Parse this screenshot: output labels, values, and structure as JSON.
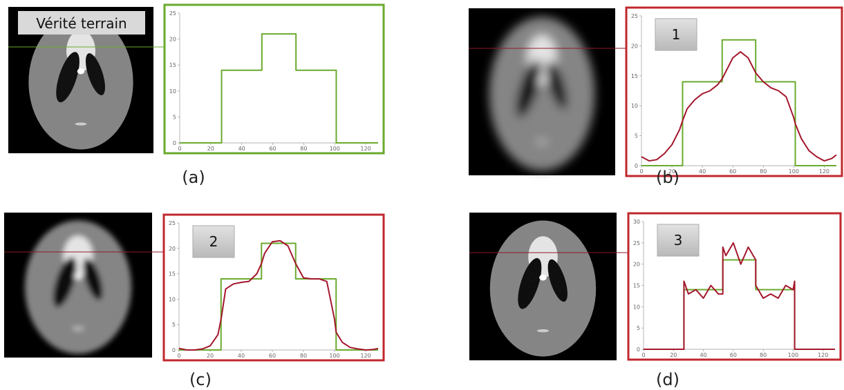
{
  "chart_data": [
    {
      "type": "line",
      "annotation": "Vérité terrain",
      "caption": "(a)",
      "x": [
        0,
        5,
        10,
        15,
        20,
        25,
        27,
        27,
        30,
        35,
        40,
        45,
        50,
        53,
        53,
        55,
        60,
        65,
        70,
        75,
        75,
        80,
        85,
        90,
        95,
        100,
        101,
        101,
        105,
        110,
        115,
        120,
        125,
        128
      ],
      "series": [
        {
          "color": "#6aaa2e",
          "values": [
            0,
            0,
            0,
            0,
            0,
            0,
            0,
            14,
            14,
            14,
            14,
            14,
            14,
            14,
            21,
            21,
            21,
            21,
            21,
            21,
            14,
            14,
            14,
            14,
            14,
            14,
            14,
            0,
            0,
            0,
            0,
            0,
            0,
            0
          ]
        }
      ],
      "xlim": [
        0,
        128
      ],
      "xticks": [
        0,
        20,
        40,
        60,
        80,
        100,
        120
      ],
      "ylim": [
        0,
        25
      ],
      "yticks": [
        0,
        5,
        10,
        15,
        20,
        25
      ],
      "frame_color": "#6aaa2e"
    },
    {
      "type": "line",
      "annotation": "1",
      "caption": "(b)",
      "x": [
        0,
        5,
        10,
        15,
        20,
        25,
        27,
        27,
        30,
        35,
        40,
        45,
        50,
        53,
        53,
        55,
        60,
        65,
        70,
        75,
        75,
        80,
        85,
        90,
        95,
        100,
        101,
        101,
        105,
        110,
        115,
        120,
        125,
        128
      ],
      "series": [
        {
          "color": "#6aaa2e",
          "values": [
            0,
            0,
            0,
            0,
            0,
            0,
            0,
            14,
            14,
            14,
            14,
            14,
            14,
            14,
            21,
            21,
            21,
            21,
            21,
            21,
            14,
            14,
            14,
            14,
            14,
            14,
            14,
            0,
            0,
            0,
            0,
            0,
            0,
            0
          ]
        },
        {
          "color": "#a3162b",
          "values": [
            1.5,
            0.8,
            1,
            2,
            3.5,
            6,
            7.5,
            7.5,
            9.5,
            11,
            12,
            12.5,
            13.5,
            14.5,
            14.5,
            15.5,
            18,
            19,
            18,
            15.5,
            15.5,
            14,
            13,
            12.5,
            11.5,
            8,
            7,
            7,
            4.5,
            2.5,
            1.5,
            0.8,
            1.2,
            1.8
          ]
        }
      ],
      "xlim": [
        0,
        128
      ],
      "xticks": [
        0,
        20,
        40,
        60,
        80,
        100,
        120
      ],
      "ylim": [
        0,
        25
      ],
      "yticks": [
        0,
        5,
        10,
        15,
        20,
        25
      ],
      "frame_color": "#c0272d"
    },
    {
      "type": "line",
      "annotation": "2",
      "caption": "(c)",
      "x": [
        0,
        5,
        10,
        15,
        20,
        25,
        27,
        27,
        30,
        35,
        40,
        45,
        50,
        53,
        53,
        55,
        60,
        65,
        70,
        75,
        75,
        80,
        85,
        90,
        95,
        100,
        101,
        101,
        105,
        110,
        115,
        120,
        125,
        128
      ],
      "series": [
        {
          "color": "#6aaa2e",
          "values": [
            0,
            0,
            0,
            0,
            0,
            0,
            0,
            14,
            14,
            14,
            14,
            14,
            14,
            14,
            21,
            21,
            21,
            21,
            21,
            21,
            14,
            14,
            14,
            14,
            14,
            14,
            14,
            0,
            0,
            0,
            0,
            0,
            0,
            0
          ]
        },
        {
          "color": "#a3162b",
          "values": [
            0.3,
            0,
            0,
            0.2,
            0.8,
            3,
            6,
            6,
            12,
            13,
            13.3,
            13.5,
            15,
            17,
            17,
            19,
            21.3,
            21.5,
            20.5,
            17,
            17,
            14.2,
            14,
            14,
            13.5,
            6,
            3.5,
            3.5,
            1.5,
            0.5,
            0.2,
            0,
            0.1,
            0.3
          ]
        }
      ],
      "xlim": [
        0,
        128
      ],
      "xticks": [
        0,
        20,
        40,
        60,
        80,
        100,
        120
      ],
      "ylim": [
        0,
        25
      ],
      "yticks": [
        0,
        5,
        10,
        15,
        20,
        25
      ],
      "frame_color": "#c0272d"
    },
    {
      "type": "line",
      "annotation": "3",
      "caption": "(d)",
      "x": [
        0,
        5,
        10,
        15,
        20,
        25,
        27,
        27,
        30,
        35,
        40,
        45,
        50,
        53,
        53,
        55,
        60,
        65,
        70,
        75,
        75,
        80,
        85,
        90,
        95,
        100,
        101,
        101,
        105,
        110,
        115,
        120,
        125,
        128
      ],
      "series": [
        {
          "color": "#6aaa2e",
          "values": [
            0,
            0,
            0,
            0,
            0,
            0,
            0,
            14,
            14,
            14,
            14,
            14,
            14,
            14,
            21,
            21,
            21,
            21,
            21,
            21,
            14,
            14,
            14,
            14,
            14,
            14,
            14,
            0,
            0,
            0,
            0,
            0,
            0,
            0
          ]
        },
        {
          "color": "#a3162b",
          "values": [
            0,
            0,
            0,
            0,
            0,
            0,
            0,
            16,
            13,
            14,
            12,
            15,
            13,
            13,
            24,
            22,
            25,
            20,
            24,
            21,
            15,
            12,
            13,
            12,
            15,
            14,
            16,
            0,
            0,
            0,
            0,
            0,
            0,
            0
          ]
        }
      ],
      "xlim": [
        0,
        128
      ],
      "xticks": [
        0,
        20,
        40,
        60,
        80,
        100,
        120
      ],
      "ylim": [
        0,
        30
      ],
      "yticks": [
        0,
        5,
        10,
        15,
        20,
        25,
        30
      ],
      "frame_color": "#c0272d"
    }
  ]
}
